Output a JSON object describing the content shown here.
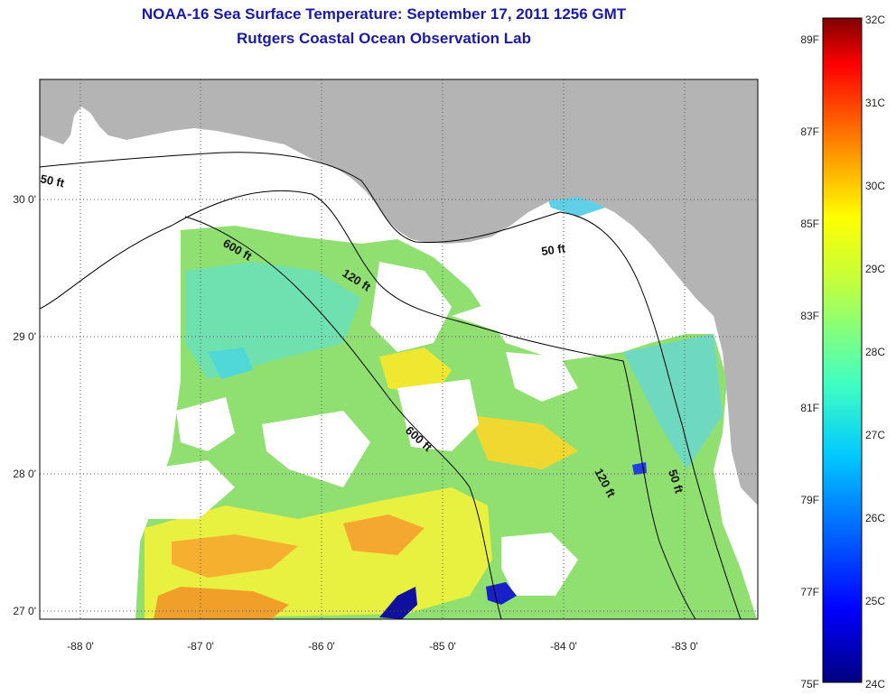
{
  "header": {
    "title": "NOAA-16 Sea Surface Temperature:  September 17, 2011 1256 GMT",
    "subtitle": "Rutgers Coastal Ocean Observation Lab"
  },
  "map": {
    "longitude_labels": [
      "-88 0'",
      "-87 0'",
      "-86 0'",
      "-85 0'",
      "-84 0'",
      "-83 0'"
    ],
    "latitude_labels": [
      "30 0'",
      "29 0'",
      "28 0'",
      "27 0'"
    ],
    "contour_labels": [
      "50 ft",
      "600 ft",
      "120 ft",
      "50 ft",
      "600 ft",
      "120 ft",
      "50 ft"
    ],
    "colors": {
      "land": "#b4b4b4",
      "cloud": "#ffffff",
      "frame": "#000000"
    }
  },
  "colorbar": {
    "celsius_labels": [
      "32C",
      "31C",
      "30C",
      "29C",
      "28C",
      "27C",
      "26C",
      "25C",
      "24C"
    ],
    "fahrenheit_labels": [
      "89F",
      "87F",
      "85F",
      "83F",
      "81F",
      "79F",
      "77F",
      "75F"
    ],
    "colors": [
      "#800000",
      "#ff0000",
      "#ff8000",
      "#ffff00",
      "#80ff80",
      "#00ffff",
      "#0080ff",
      "#0000ff",
      "#000080"
    ]
  }
}
